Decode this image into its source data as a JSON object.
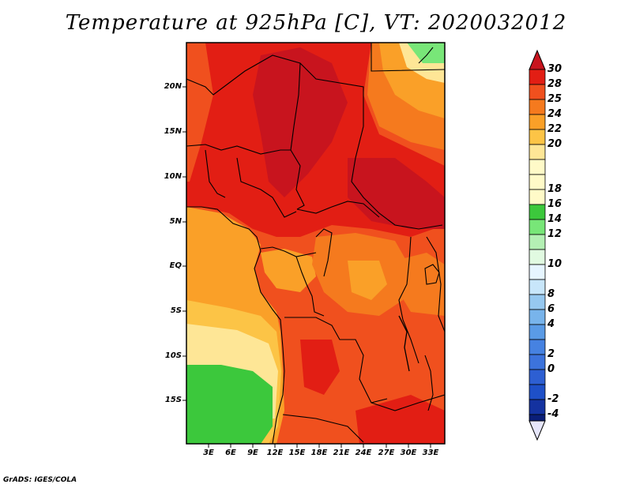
{
  "title": "Temperature at 925hPa [C], VT: 2020032012",
  "footer": "GrADS: IGES/COLA",
  "map": {
    "lat_labels": [
      "20N",
      "15N",
      "10N",
      "5N",
      "EQ",
      "5S",
      "10S",
      "15S"
    ],
    "lon_labels": [
      "3E",
      "6E",
      "9E",
      "12E",
      "15E",
      "18E",
      "21E",
      "24E",
      "27E",
      "30E",
      "33E"
    ]
  },
  "colorbar": {
    "levels": [
      "30",
      "28",
      "25",
      "24",
      "22",
      "20",
      "18",
      "16",
      "14",
      "12",
      "10",
      "8",
      "6",
      "4",
      "2",
      "0",
      "-2",
      "-4"
    ],
    "colors": {
      "gt30": "#c8141e",
      "28_30": "#e21e14",
      "25_28": "#f0501e",
      "24_25": "#f57a1e",
      "22_24": "#faa028",
      "20_22": "#fcc446",
      "18_20": "#fee696",
      "16_18": "#fffac8",
      "14_16": "#3cc83c",
      "12_14": "#78e678",
      "10_12": "#b4f0b4",
      "8_10": "#e1fae1",
      "6_8": "#c8e6fa",
      "4_6": "#96c8f0",
      "2_4": "#5a9be6",
      "0_2": "#3c73dc",
      "m2_0": "#1e50c8",
      "m4_m2": "#1432a0",
      "lt_m4": "#e6e6fa"
    }
  }
}
